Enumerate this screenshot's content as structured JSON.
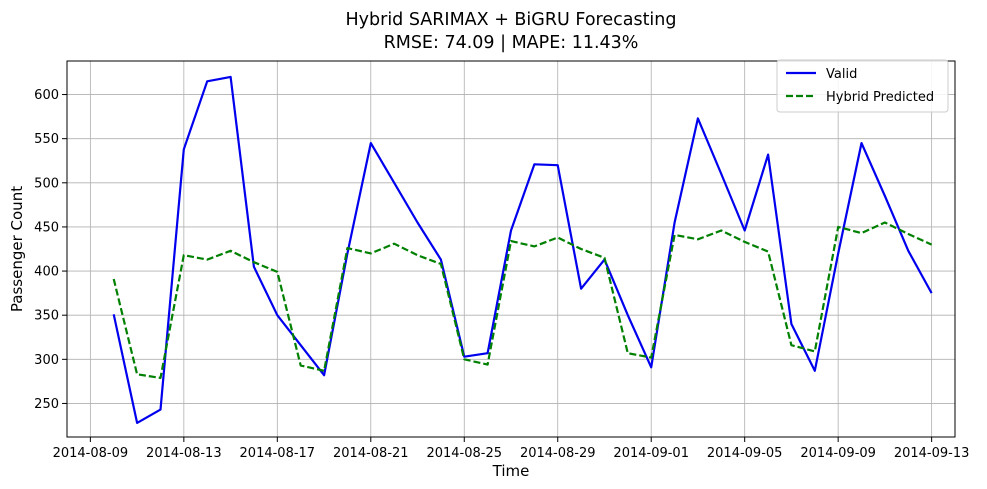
{
  "chart_data": {
    "type": "line",
    "title": "Hybrid SARIMAX + BiGRU Forecasting",
    "subtitle": "RMSE: 74.09 | MAPE: 11.43%",
    "xlabel": "Time",
    "ylabel": "Passenger Count",
    "x_ticks": [
      "2014-08-09",
      "2014-08-13",
      "2014-08-17",
      "2014-08-21",
      "2014-08-25",
      "2014-08-29",
      "2014-09-01",
      "2014-09-05",
      "2014-09-09",
      "2014-09-13"
    ],
    "x_tick_days": [
      1,
      5,
      9,
      13,
      17,
      21,
      25,
      29,
      33,
      37
    ],
    "y_ticks": [
      250,
      300,
      350,
      400,
      450,
      500,
      550,
      600
    ],
    "xlim": [
      "2014-08-06",
      "2014-09-13"
    ],
    "ylim": [
      212,
      638
    ],
    "grid": true,
    "legend_position": "top-right",
    "x": [
      "2014-08-08",
      "2014-08-09",
      "2014-08-10",
      "2014-08-11",
      "2014-08-12",
      "2014-08-13",
      "2014-08-14",
      "2014-08-15",
      "2014-08-16",
      "2014-08-17",
      "2014-08-18",
      "2014-08-19",
      "2014-08-20",
      "2014-08-21",
      "2014-08-22",
      "2014-08-23",
      "2014-08-24",
      "2014-08-25",
      "2014-08-26",
      "2014-08-27",
      "2014-08-28",
      "2014-08-29",
      "2014-08-30",
      "2014-08-31",
      "2014-09-01",
      "2014-09-02",
      "2014-09-03",
      "2014-09-04",
      "2014-09-05",
      "2014-09-06",
      "2014-09-07",
      "2014-09-08",
      "2014-09-09",
      "2014-09-10",
      "2014-09-11",
      "2014-09-12"
    ],
    "series": [
      {
        "name": "Valid",
        "color": "#0000ee",
        "style": "solid",
        "values": [
          351,
          228,
          243,
          538,
          615,
          620,
          405,
          350,
          316,
          282,
          420,
          545,
          500,
          455,
          413,
          303,
          307,
          446,
          521,
          520,
          380,
          413,
          350,
          291,
          455,
          573,
          510,
          446,
          532,
          340,
          287,
          420,
          545,
          485,
          423,
          375
        ]
      },
      {
        "name": "Hybrid Predicted",
        "color": "#008000",
        "style": "dashed",
        "values": [
          391,
          283,
          279,
          418,
          413,
          423,
          410,
          399,
          293,
          287,
          426,
          420,
          431,
          418,
          408,
          300,
          294,
          434,
          428,
          438,
          425,
          415,
          307,
          302,
          441,
          436,
          446,
          433,
          422,
          316,
          309,
          450,
          443,
          455,
          442,
          430
        ]
      }
    ]
  }
}
